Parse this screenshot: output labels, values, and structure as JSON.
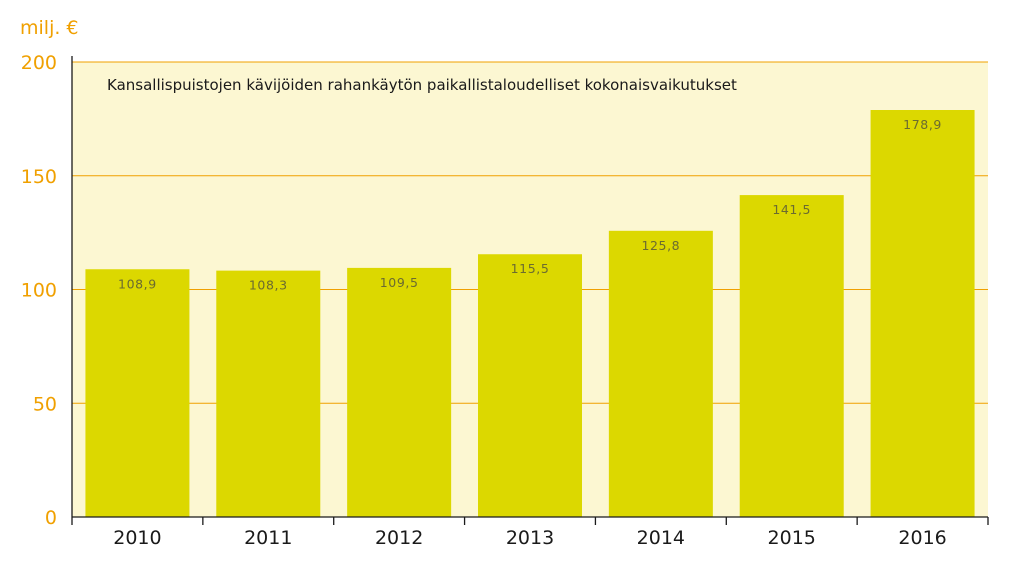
{
  "chart_data": {
    "type": "bar",
    "title": "Kansallispuistojen kävijöiden rahankäytön paikallistaloudelliset kokonaisvaikutukset",
    "unit_label": "milj. €",
    "categories": [
      "2010",
      "2011",
      "2012",
      "2013",
      "2014",
      "2015",
      "2016"
    ],
    "values": [
      108.9,
      108.3,
      109.5,
      115.5,
      125.8,
      141.5,
      178.9
    ],
    "value_labels": [
      "108,9",
      "108,3",
      "109,5",
      "115,5",
      "125,8",
      "141,5",
      "178,9"
    ],
    "ylim": [
      0,
      200
    ],
    "yticks": [
      0,
      50,
      100,
      150,
      200
    ],
    "grid": true,
    "colors": {
      "bar": "#dcd800",
      "plot_background": "#fcf7d2",
      "gridline": "#f0a000",
      "axis_tick_text": "#f0a000"
    }
  }
}
